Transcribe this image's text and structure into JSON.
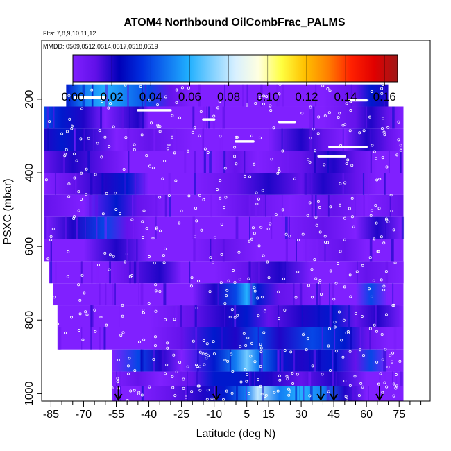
{
  "chart_data": {
    "type": "heatmap",
    "title": "ATOM4 Northbound OilCombFrac_PALMS",
    "flights_label": "Flts: 7,8,9,10,11,12",
    "dates_label": "MMDD: 0509,0512,0514,0517,0518,0519",
    "xlabel": "Latitude (deg N)",
    "ylabel": "PSXC (mbar)",
    "xlim": [
      -88,
      88
    ],
    "ylim": [
      1020,
      40
    ],
    "x_ticks": [
      -85,
      -70,
      -55,
      -40,
      -25,
      -10,
      5,
      15,
      30,
      45,
      60,
      75
    ],
    "x_minor_ticks": [
      -80,
      -75,
      -65,
      -60,
      -50,
      -45,
      -35,
      -30,
      -20,
      -15,
      -5,
      0,
      10,
      20,
      25,
      35,
      40,
      50,
      55,
      65,
      70,
      80,
      85
    ],
    "y_ticks": [
      200,
      400,
      600,
      800,
      1000
    ],
    "colorbar": {
      "ticks": [
        0.0,
        0.02,
        0.04,
        0.06,
        0.08,
        0.1,
        0.12,
        0.14,
        0.16
      ],
      "tick_labels": [
        "0.00",
        "0.02",
        "0.04",
        "0.06",
        "0.08",
        "0.10",
        "0.12",
        "0.14",
        "0.16"
      ],
      "range": [
        0,
        0.1667
      ],
      "colors": [
        "#8020ff",
        "#6010e8",
        "#0000b8",
        "#0030e0",
        "#1070f0",
        "#20b0ff",
        "#80d0ff",
        "#d8f0ff",
        "#ffffe0",
        "#ffff40",
        "#ffc000",
        "#ff8000",
        "#ff2000",
        "#e00000",
        "#a01818"
      ]
    },
    "arrow_latitudes": [
      -54,
      -9,
      39,
      45,
      66
    ],
    "pressure_bands": [
      {
        "p_top": 160,
        "p_bot": 220,
        "lat_min": -78,
        "lat_max": 70,
        "values": [
          [
            -78,
            0.03
          ],
          [
            -70,
            0.05
          ],
          [
            -60,
            0.06
          ],
          [
            -50,
            0.05
          ],
          [
            -40,
            0.04
          ],
          [
            -30,
            0.01
          ],
          [
            -20,
            0.0
          ],
          [
            0,
            0.0
          ],
          [
            20,
            0.0
          ],
          [
            40,
            0.0
          ],
          [
            55,
            0.01
          ],
          [
            62,
            0.03
          ],
          [
            70,
            0.02
          ]
        ]
      },
      {
        "p_top": 220,
        "p_bot": 280,
        "lat_min": -88,
        "lat_max": 77,
        "values": [
          [
            -88,
            0.04
          ],
          [
            -80,
            0.03
          ],
          [
            -70,
            0.02
          ],
          [
            -60,
            0.0
          ],
          [
            -45,
            0.02
          ],
          [
            -40,
            0.0
          ],
          [
            -20,
            0.0
          ],
          [
            0,
            0.0
          ],
          [
            20,
            0.0
          ],
          [
            40,
            0.0
          ],
          [
            55,
            0.01
          ],
          [
            62,
            0.02
          ],
          [
            70,
            0.01
          ],
          [
            77,
            0.0
          ]
        ]
      },
      {
        "p_top": 280,
        "p_bot": 340,
        "lat_min": -88,
        "lat_max": 77,
        "values": [
          [
            -88,
            0.02
          ],
          [
            -80,
            0.03
          ],
          [
            -70,
            0.02
          ],
          [
            -55,
            0.0
          ],
          [
            -40,
            0.01
          ],
          [
            -20,
            0.0
          ],
          [
            0,
            0.0
          ],
          [
            15,
            0.0
          ],
          [
            30,
            0.02
          ],
          [
            40,
            0.01
          ],
          [
            50,
            0.0
          ],
          [
            60,
            0.02
          ],
          [
            70,
            0.01
          ],
          [
            77,
            0.0
          ]
        ]
      },
      {
        "p_top": 340,
        "p_bot": 400,
        "lat_min": -88,
        "lat_max": 77,
        "values": [
          [
            -88,
            0.01
          ],
          [
            -75,
            0.02
          ],
          [
            -60,
            0.01
          ],
          [
            -50,
            0.0
          ],
          [
            -30,
            0.0
          ],
          [
            -10,
            0.0
          ],
          [
            0,
            0.01
          ],
          [
            10,
            0.0
          ],
          [
            30,
            0.01
          ],
          [
            45,
            0.02
          ],
          [
            55,
            0.01
          ],
          [
            65,
            0.0
          ],
          [
            77,
            0.0
          ]
        ]
      },
      {
        "p_top": 400,
        "p_bot": 460,
        "lat_min": -88,
        "lat_max": 77,
        "values": [
          [
            -88,
            0.0
          ],
          [
            -75,
            0.01
          ],
          [
            -60,
            0.02
          ],
          [
            -50,
            0.03
          ],
          [
            -40,
            0.0
          ],
          [
            -20,
            0.0
          ],
          [
            0,
            0.01
          ],
          [
            15,
            0.02
          ],
          [
            30,
            0.01
          ],
          [
            40,
            0.02
          ],
          [
            55,
            0.01
          ],
          [
            65,
            0.0
          ],
          [
            77,
            0.0
          ]
        ]
      },
      {
        "p_top": 460,
        "p_bot": 520,
        "lat_min": -88,
        "lat_max": 77,
        "values": [
          [
            -88,
            0.01
          ],
          [
            -70,
            0.0
          ],
          [
            -55,
            0.03
          ],
          [
            -45,
            0.01
          ],
          [
            -30,
            0.0
          ],
          [
            -10,
            0.0
          ],
          [
            5,
            0.01
          ],
          [
            25,
            0.0
          ],
          [
            45,
            0.01
          ],
          [
            60,
            0.0
          ],
          [
            77,
            0.01
          ]
        ]
      },
      {
        "p_top": 520,
        "p_bot": 580,
        "lat_min": -88,
        "lat_max": 77,
        "values": [
          [
            -88,
            0.0
          ],
          [
            -75,
            0.02
          ],
          [
            -60,
            0.04
          ],
          [
            -50,
            0.01
          ],
          [
            -40,
            0.0
          ],
          [
            -20,
            0.0
          ],
          [
            0,
            0.0
          ],
          [
            20,
            0.0
          ],
          [
            40,
            0.01
          ],
          [
            55,
            0.0
          ],
          [
            65,
            0.02
          ],
          [
            77,
            0.0
          ]
        ]
      },
      {
        "p_top": 580,
        "p_bot": 640,
        "lat_min": -88,
        "lat_max": 77,
        "values": [
          [
            -88,
            0.0
          ],
          [
            -70,
            0.0
          ],
          [
            -55,
            0.02
          ],
          [
            -40,
            0.0
          ],
          [
            -20,
            0.0
          ],
          [
            -5,
            0.01
          ],
          [
            10,
            0.0
          ],
          [
            30,
            0.0
          ],
          [
            50,
            0.01
          ],
          [
            60,
            0.0
          ],
          [
            77,
            0.0
          ]
        ]
      },
      {
        "p_top": 640,
        "p_bot": 700,
        "lat_min": -86,
        "lat_max": 77,
        "values": [
          [
            -86,
            0.0
          ],
          [
            -60,
            0.0
          ],
          [
            -50,
            0.01
          ],
          [
            -35,
            0.02
          ],
          [
            -25,
            0.0
          ],
          [
            -10,
            0.0
          ],
          [
            5,
            0.01
          ],
          [
            20,
            0.02
          ],
          [
            35,
            0.0
          ],
          [
            50,
            0.0
          ],
          [
            60,
            0.01
          ],
          [
            77,
            0.0
          ]
        ]
      },
      {
        "p_top": 700,
        "p_bot": 760,
        "lat_min": -84,
        "lat_max": 77,
        "values": [
          [
            -84,
            0.0
          ],
          [
            -60,
            0.0
          ],
          [
            -40,
            0.0
          ],
          [
            -20,
            0.0
          ],
          [
            -10,
            0.02
          ],
          [
            0,
            0.04
          ],
          [
            5,
            0.06
          ],
          [
            10,
            0.03
          ],
          [
            20,
            0.01
          ],
          [
            40,
            0.0
          ],
          [
            55,
            0.0
          ],
          [
            62,
            0.04
          ],
          [
            70,
            0.0
          ]
        ]
      },
      {
        "p_top": 760,
        "p_bot": 820,
        "lat_min": -82,
        "lat_max": 77,
        "values": [
          [
            -82,
            0.0
          ],
          [
            -60,
            0.0
          ],
          [
            -40,
            0.0
          ],
          [
            -20,
            0.01
          ],
          [
            -5,
            0.02
          ],
          [
            5,
            0.03
          ],
          [
            15,
            0.01
          ],
          [
            30,
            0.02
          ],
          [
            45,
            0.03
          ],
          [
            55,
            0.01
          ],
          [
            65,
            0.02
          ],
          [
            77,
            0.0
          ]
        ]
      },
      {
        "p_top": 820,
        "p_bot": 880,
        "lat_min": -82,
        "lat_max": 77,
        "values": [
          [
            -82,
            0.0
          ],
          [
            -60,
            0.0
          ],
          [
            -40,
            0.0
          ],
          [
            -25,
            0.01
          ],
          [
            -10,
            0.03
          ],
          [
            0,
            0.02
          ],
          [
            10,
            0.04
          ],
          [
            20,
            0.02
          ],
          [
            35,
            0.04
          ],
          [
            50,
            0.03
          ],
          [
            60,
            0.01
          ],
          [
            70,
            0.0
          ],
          [
            77,
            0.0
          ]
        ]
      },
      {
        "p_top": 880,
        "p_bot": 940,
        "lat_min": -57,
        "lat_max": 77,
        "values": [
          [
            -57,
            0.0
          ],
          [
            -45,
            0.04
          ],
          [
            -35,
            0.02
          ],
          [
            -25,
            0.0
          ],
          [
            -10,
            0.03
          ],
          [
            0,
            0.05
          ],
          [
            5,
            0.07
          ],
          [
            10,
            0.05
          ],
          [
            20,
            0.03
          ],
          [
            30,
            0.02
          ],
          [
            45,
            0.03
          ],
          [
            55,
            0.01
          ],
          [
            62,
            0.04
          ],
          [
            70,
            0.0
          ]
        ]
      },
      {
        "p_top": 940,
        "p_bot": 980,
        "lat_min": -57,
        "lat_max": 77,
        "values": [
          [
            -57,
            0.0
          ],
          [
            -45,
            0.01
          ],
          [
            -35,
            0.0
          ],
          [
            -20,
            0.01
          ],
          [
            -10,
            0.03
          ],
          [
            0,
            0.03
          ],
          [
            15,
            0.02
          ],
          [
            30,
            0.01
          ],
          [
            45,
            0.02
          ],
          [
            60,
            0.0
          ],
          [
            77,
            0.0
          ]
        ]
      },
      {
        "p_top": 980,
        "p_bot": 1020,
        "lat_min": -57,
        "lat_max": 77,
        "values": [
          [
            -57,
            0.0
          ],
          [
            -45,
            0.0
          ],
          [
            -30,
            0.01
          ],
          [
            -15,
            0.02
          ],
          [
            -5,
            0.03
          ],
          [
            5,
            0.05
          ],
          [
            10,
            0.08
          ],
          [
            20,
            0.05
          ],
          [
            30,
            0.06
          ],
          [
            40,
            0.05
          ],
          [
            50,
            0.02
          ],
          [
            60,
            0.0
          ],
          [
            77,
            0.0
          ]
        ]
      }
    ],
    "sample_tracks": [
      {
        "lat": [
          -74,
          -60
        ],
        "p": 195
      },
      {
        "lat": [
          52,
          60
        ],
        "p": 203
      },
      {
        "lat": [
          -45,
          -30
        ],
        "p": 230
      },
      {
        "lat": [
          -15,
          -10
        ],
        "p": 255
      },
      {
        "lat": [
          20,
          27
        ],
        "p": 262
      },
      {
        "lat": [
          0,
          8
        ],
        "p": 315
      },
      {
        "lat": [
          43,
          60
        ],
        "p": 330
      },
      {
        "lat": [
          38,
          50
        ],
        "p": 355
      }
    ]
  }
}
